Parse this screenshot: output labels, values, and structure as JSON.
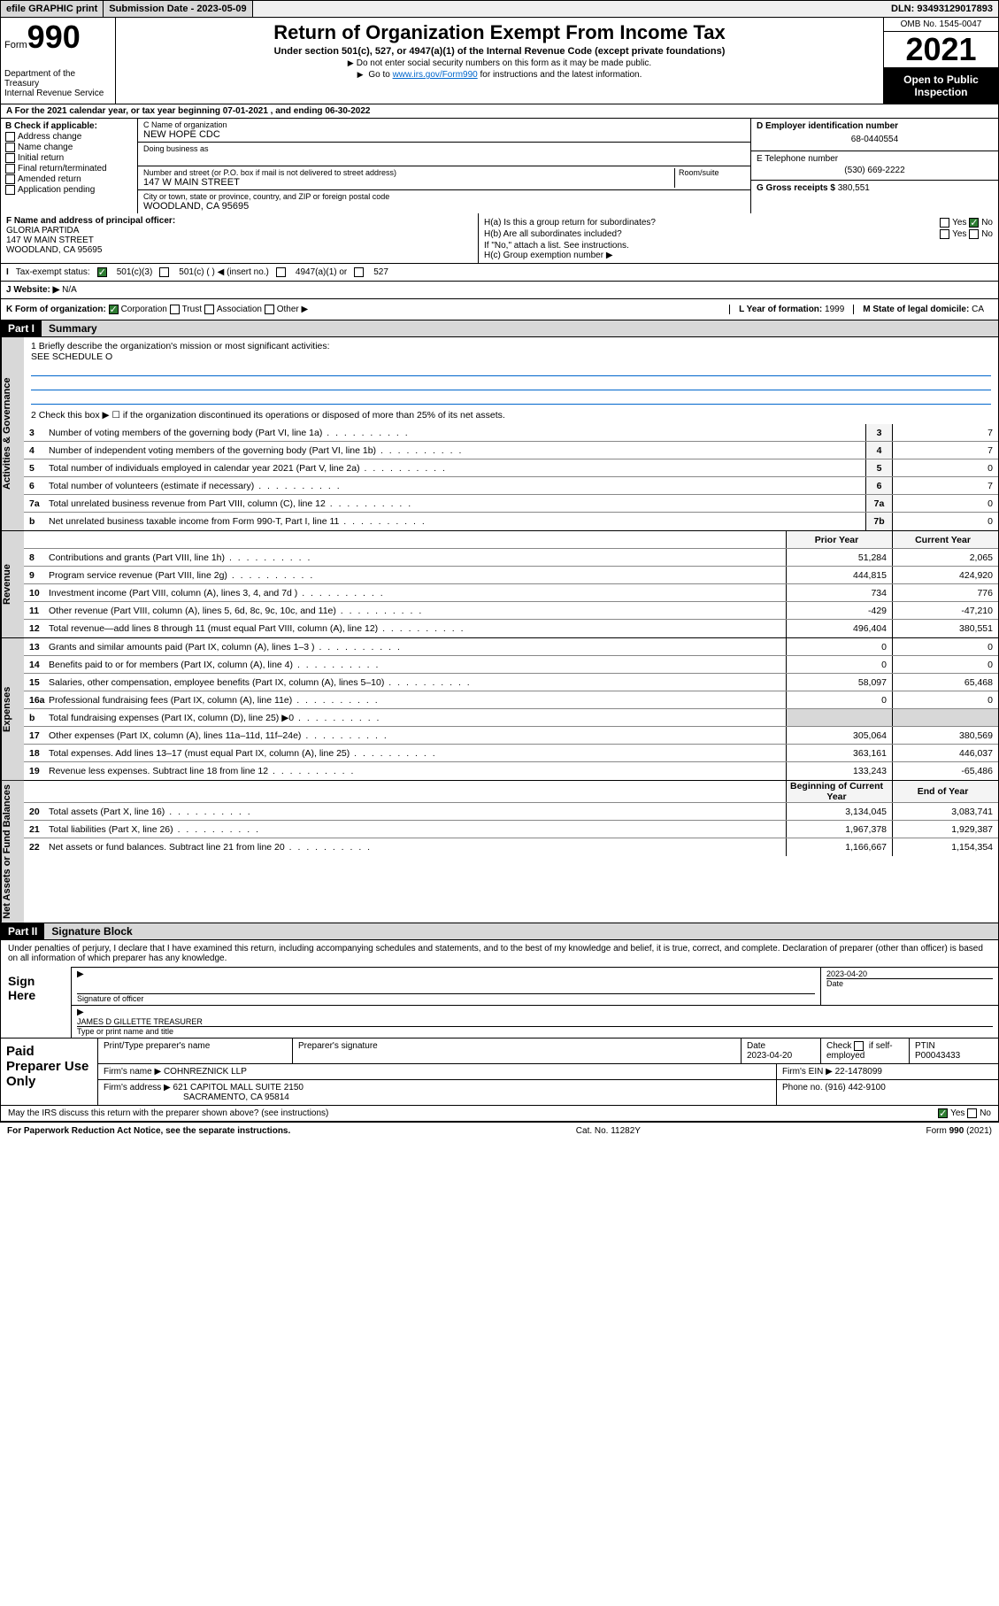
{
  "topbar": {
    "efile": "efile GRAPHIC print",
    "submission_label": "Submission Date - 2023-05-09",
    "dln": "DLN: 93493129017893"
  },
  "header": {
    "form_word": "Form",
    "form_number": "990",
    "title": "Return of Organization Exempt From Income Tax",
    "subtitle": "Under section 501(c), 527, or 4947(a)(1) of the Internal Revenue Code (except private foundations)",
    "note1": "Do not enter social security numbers on this form as it may be made public.",
    "note2_pre": "Go to ",
    "note2_link": "www.irs.gov/Form990",
    "note2_post": " for instructions and the latest information.",
    "dept": "Department of the Treasury\nInternal Revenue Service",
    "omb": "OMB No. 1545-0047",
    "year": "2021",
    "open": "Open to Public Inspection"
  },
  "row_a": "A For the 2021 calendar year, or tax year beginning 07-01-2021   , and ending 06-30-2022",
  "col_b": {
    "header": "B Check if applicable:",
    "items": [
      "Address change",
      "Name change",
      "Initial return",
      "Final return/terminated",
      "Amended return",
      "Application pending"
    ]
  },
  "col_c": {
    "name_label": "C Name of organization",
    "name": "NEW HOPE CDC",
    "dba_label": "Doing business as",
    "addr_label": "Number and street (or P.O. box if mail is not delivered to street address)",
    "room_label": "Room/suite",
    "addr": "147 W MAIN STREET",
    "city_label": "City or town, state or province, country, and ZIP or foreign postal code",
    "city": "WOODLAND, CA  95695"
  },
  "col_d": {
    "ein_label": "D Employer identification number",
    "ein": "68-0440554",
    "phone_label": "E Telephone number",
    "phone": "(530) 669-2222",
    "gross_label": "G Gross receipts $ ",
    "gross": "380,551"
  },
  "row_f": {
    "label": "F Name and address of principal officer:",
    "name": "GLORIA PARTIDA",
    "addr1": "147 W MAIN STREET",
    "addr2": "WOODLAND, CA  95695"
  },
  "row_h": {
    "a_label": "H(a)  Is this a group return for subordinates?",
    "a_yes": "Yes",
    "a_no": "No",
    "b_label": "H(b)  Are all subordinates included?",
    "b_yes": "Yes",
    "b_no": "No",
    "b_note": "If \"No,\" attach a list. See instructions.",
    "c_label": "H(c)  Group exemption number ▶"
  },
  "row_i": {
    "label": "Tax-exempt status:",
    "opt1": "501(c)(3)",
    "opt2": "501(c) (  ) ◀ (insert no.)",
    "opt3": "4947(a)(1) or",
    "opt4": "527"
  },
  "row_j": {
    "label": "Website: ▶",
    "val": "N/A"
  },
  "row_k": {
    "label": "K Form of organization:",
    "opts": [
      "Corporation",
      "Trust",
      "Association",
      "Other ▶"
    ],
    "l_label": "L Year of formation: ",
    "l_val": "1999",
    "m_label": "M State of legal domicile: ",
    "m_val": "CA"
  },
  "part1": {
    "num": "Part I",
    "title": "Summary"
  },
  "mission": {
    "line1_label": "1   Briefly describe the organization's mission or most significant activities:",
    "line1_val": "SEE SCHEDULE O",
    "line2": "2   Check this box ▶ ☐  if the organization discontinued its operations or disposed of more than 25% of its net assets."
  },
  "vtabs": {
    "gov": "Activities & Governance",
    "rev": "Revenue",
    "exp": "Expenses",
    "net": "Net Assets or Fund Balances"
  },
  "gov_lines": [
    {
      "n": "3",
      "d": "Number of voting members of the governing body (Part VI, line 1a)",
      "box": "3",
      "v": "7"
    },
    {
      "n": "4",
      "d": "Number of independent voting members of the governing body (Part VI, line 1b)",
      "box": "4",
      "v": "7"
    },
    {
      "n": "5",
      "d": "Total number of individuals employed in calendar year 2021 (Part V, line 2a)",
      "box": "5",
      "v": "0"
    },
    {
      "n": "6",
      "d": "Total number of volunteers (estimate if necessary)",
      "box": "6",
      "v": "7"
    },
    {
      "n": "7a",
      "d": "Total unrelated business revenue from Part VIII, column (C), line 12",
      "box": "7a",
      "v": "0"
    },
    {
      "n": "b",
      "d": "Net unrelated business taxable income from Form 990-T, Part I, line 11",
      "box": "7b",
      "v": "0"
    }
  ],
  "col_hdrs": {
    "prior": "Prior Year",
    "current": "Current Year",
    "boy": "Beginning of Current Year",
    "eoy": "End of Year"
  },
  "rev_lines": [
    {
      "n": "8",
      "d": "Contributions and grants (Part VIII, line 1h)",
      "p": "51,284",
      "c": "2,065"
    },
    {
      "n": "9",
      "d": "Program service revenue (Part VIII, line 2g)",
      "p": "444,815",
      "c": "424,920"
    },
    {
      "n": "10",
      "d": "Investment income (Part VIII, column (A), lines 3, 4, and 7d )",
      "p": "734",
      "c": "776"
    },
    {
      "n": "11",
      "d": "Other revenue (Part VIII, column (A), lines 5, 6d, 8c, 9c, 10c, and 11e)",
      "p": "-429",
      "c": "-47,210"
    },
    {
      "n": "12",
      "d": "Total revenue—add lines 8 through 11 (must equal Part VIII, column (A), line 12)",
      "p": "496,404",
      "c": "380,551"
    }
  ],
  "exp_lines": [
    {
      "n": "13",
      "d": "Grants and similar amounts paid (Part IX, column (A), lines 1–3 )",
      "p": "0",
      "c": "0"
    },
    {
      "n": "14",
      "d": "Benefits paid to or for members (Part IX, column (A), line 4)",
      "p": "0",
      "c": "0"
    },
    {
      "n": "15",
      "d": "Salaries, other compensation, employee benefits (Part IX, column (A), lines 5–10)",
      "p": "58,097",
      "c": "65,468"
    },
    {
      "n": "16a",
      "d": "Professional fundraising fees (Part IX, column (A), line 11e)",
      "p": "0",
      "c": "0"
    },
    {
      "n": "b",
      "d": "Total fundraising expenses (Part IX, column (D), line 25) ▶0",
      "p": "",
      "c": "",
      "shaded": true
    },
    {
      "n": "17",
      "d": "Other expenses (Part IX, column (A), lines 11a–11d, 11f–24e)",
      "p": "305,064",
      "c": "380,569"
    },
    {
      "n": "18",
      "d": "Total expenses. Add lines 13–17 (must equal Part IX, column (A), line 25)",
      "p": "363,161",
      "c": "446,037"
    },
    {
      "n": "19",
      "d": "Revenue less expenses. Subtract line 18 from line 12",
      "p": "133,243",
      "c": "-65,486"
    }
  ],
  "net_lines": [
    {
      "n": "20",
      "d": "Total assets (Part X, line 16)",
      "p": "3,134,045",
      "c": "3,083,741"
    },
    {
      "n": "21",
      "d": "Total liabilities (Part X, line 26)",
      "p": "1,967,378",
      "c": "1,929,387"
    },
    {
      "n": "22",
      "d": "Net assets or fund balances. Subtract line 21 from line 20",
      "p": "1,166,667",
      "c": "1,154,354"
    }
  ],
  "part2": {
    "num": "Part II",
    "title": "Signature Block"
  },
  "sig": {
    "penalty": "Under penalties of perjury, I declare that I have examined this return, including accompanying schedules and statements, and to the best of my knowledge and belief, it is true, correct, and complete. Declaration of preparer (other than officer) is based on all information of which preparer has any knowledge.",
    "sign_here": "Sign Here",
    "sig_officer": "Signature of officer",
    "date": "2023-04-20",
    "date_label": "Date",
    "officer_name": "JAMES D GILLETTE TREASURER",
    "type_name": "Type or print name and title"
  },
  "prep": {
    "label": "Paid Preparer Use Only",
    "h1": "Print/Type preparer's name",
    "h2": "Preparer's signature",
    "h3": "Date",
    "date": "2023-04-20",
    "h4_pre": "Check",
    "h4_post": "if self-employed",
    "h5": "PTIN",
    "ptin": "P00043433",
    "firm_name_label": "Firm's name    ▶",
    "firm_name": "COHNREZNICK LLP",
    "firm_ein_label": "Firm's EIN ▶",
    "firm_ein": "22-1478099",
    "firm_addr_label": "Firm's address ▶",
    "firm_addr1": "621 CAPITOL MALL SUITE 2150",
    "firm_addr2": "SACRAMENTO, CA  95814",
    "phone_label": "Phone no. ",
    "phone": "(916) 442-9100"
  },
  "may": {
    "q": "May the IRS discuss this return with the preparer shown above? (see instructions)",
    "yes": "Yes",
    "no": "No"
  },
  "footer": {
    "left": "For Paperwork Reduction Act Notice, see the separate instructions.",
    "mid": "Cat. No. 11282Y",
    "right": "Form 990 (2021)"
  }
}
